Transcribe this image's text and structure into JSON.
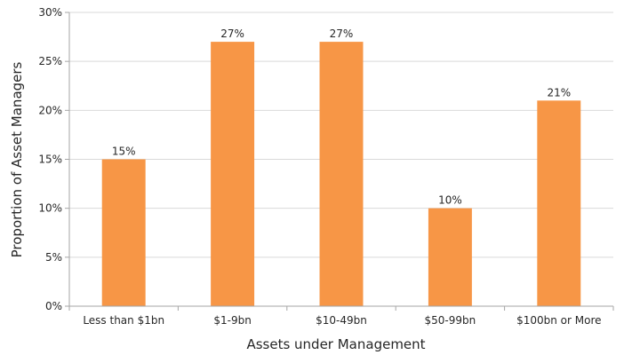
{
  "chart_data": {
    "type": "bar",
    "title": "",
    "xlabel": "Assets under Management",
    "ylabel": "Proportion of Asset Managers",
    "categories": [
      "Less than $1bn",
      "$1-9bn",
      "$10-49bn",
      "$50-99bn",
      "$100bn or More"
    ],
    "values": [
      15,
      27,
      27,
      10,
      21
    ],
    "data_labels": [
      "15%",
      "27%",
      "27%",
      "10%",
      "21%"
    ],
    "ylim": [
      0,
      30
    ],
    "yticks": [
      0,
      5,
      10,
      15,
      20,
      25,
      30
    ],
    "ytick_labels": [
      "0%",
      "5%",
      "10%",
      "15%",
      "20%",
      "25%",
      "30%"
    ],
    "grid": "horizontal",
    "legend": "none",
    "bar_color": "#f79646"
  }
}
